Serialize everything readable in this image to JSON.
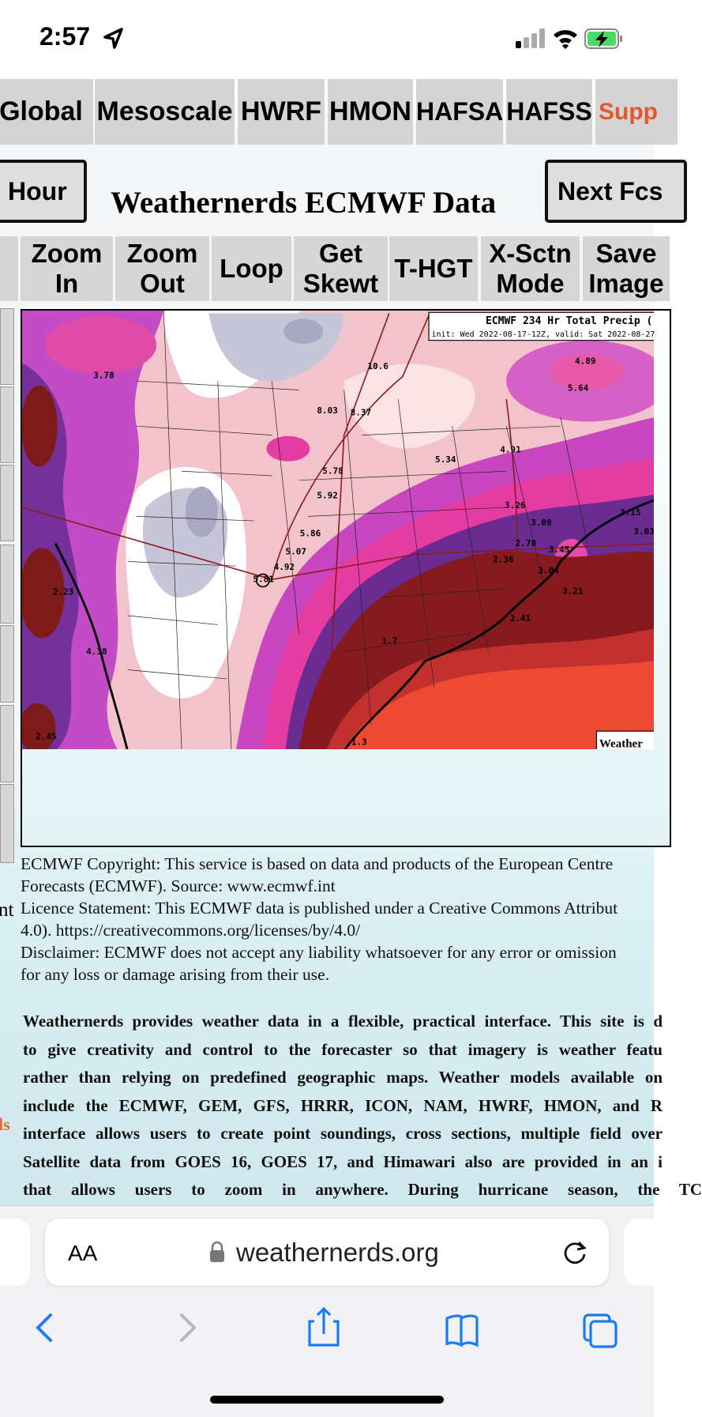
{
  "status_bar": {
    "time": "2:57"
  },
  "nav_tabs": [
    "Global",
    "Mesoscale",
    "HWRF",
    "HMON",
    "HAFSA",
    "HAFSS",
    "Supp"
  ],
  "controls": {
    "prev_button": "Hour",
    "title": "Weathernerds ECMWF Data",
    "next_button": "Next Fcs"
  },
  "toolbar": [
    "Zoom In",
    "Zoom Out",
    "Loop",
    "Get Skewt",
    "T-HGT",
    "X-Sctn Mode",
    "Save Image"
  ],
  "map": {
    "title": "ECMWF 234 Hr Total Precip (",
    "subtitle": "init: Wed 2022-08-17-12Z, valid: Sat 2022-08-27",
    "watermark": "Weather",
    "labels": [
      "3.78",
      "10.6",
      "8.03",
      "8.37",
      "5.78",
      "5.92",
      "5.86",
      "5.07",
      "4.92",
      "5.81",
      "2.23",
      "4.38",
      "2.45",
      "1.7",
      "1.3",
      "2.41",
      "2.36",
      "3.04",
      "2.78",
      "3.45",
      "3.21",
      "3.26",
      "3.09",
      "4.91",
      "5.34",
      "5.64",
      "4.89",
      "3.15",
      "3.03"
    ]
  },
  "side_fragments": [
    "nt",
    "ls"
  ],
  "notice": [
    "ECMWF Copyright: This service is based on data and products of the European Centre",
    "Forecasts (ECMWF). Source: www.ecmwf.int",
    "Licence Statement: This ECMWF data is published under a Creative Commons Attribut",
    "4.0). https://creativecommons.org/licenses/by/4.0/",
    "Disclaimer: ECMWF does not accept any liability whatsoever for any error or omission",
    "for any loss or damage arising from their use."
  ],
  "description": [
    "Weathernerds provides weather data in a flexible, practical interface. This site is d",
    "to give creativity and control to the forecaster so that imagery is weather featu",
    "rather than relying on predefined geographic maps. Weather models available on",
    "include the ECMWF, GEM, GFS, HRRR, ICON, NAM, HWRF, HMON, and R",
    "interface allows users to create point soundings, cross sections, multiple field over",
    "Satellite data from GOES 16, GOES 17, and Himawari also are provided in an i",
    "that allows users to zoom in anywhere. During hurricane season, the TC"
  ],
  "browser": {
    "text_size": "AA",
    "url": "weathernerds.org"
  }
}
